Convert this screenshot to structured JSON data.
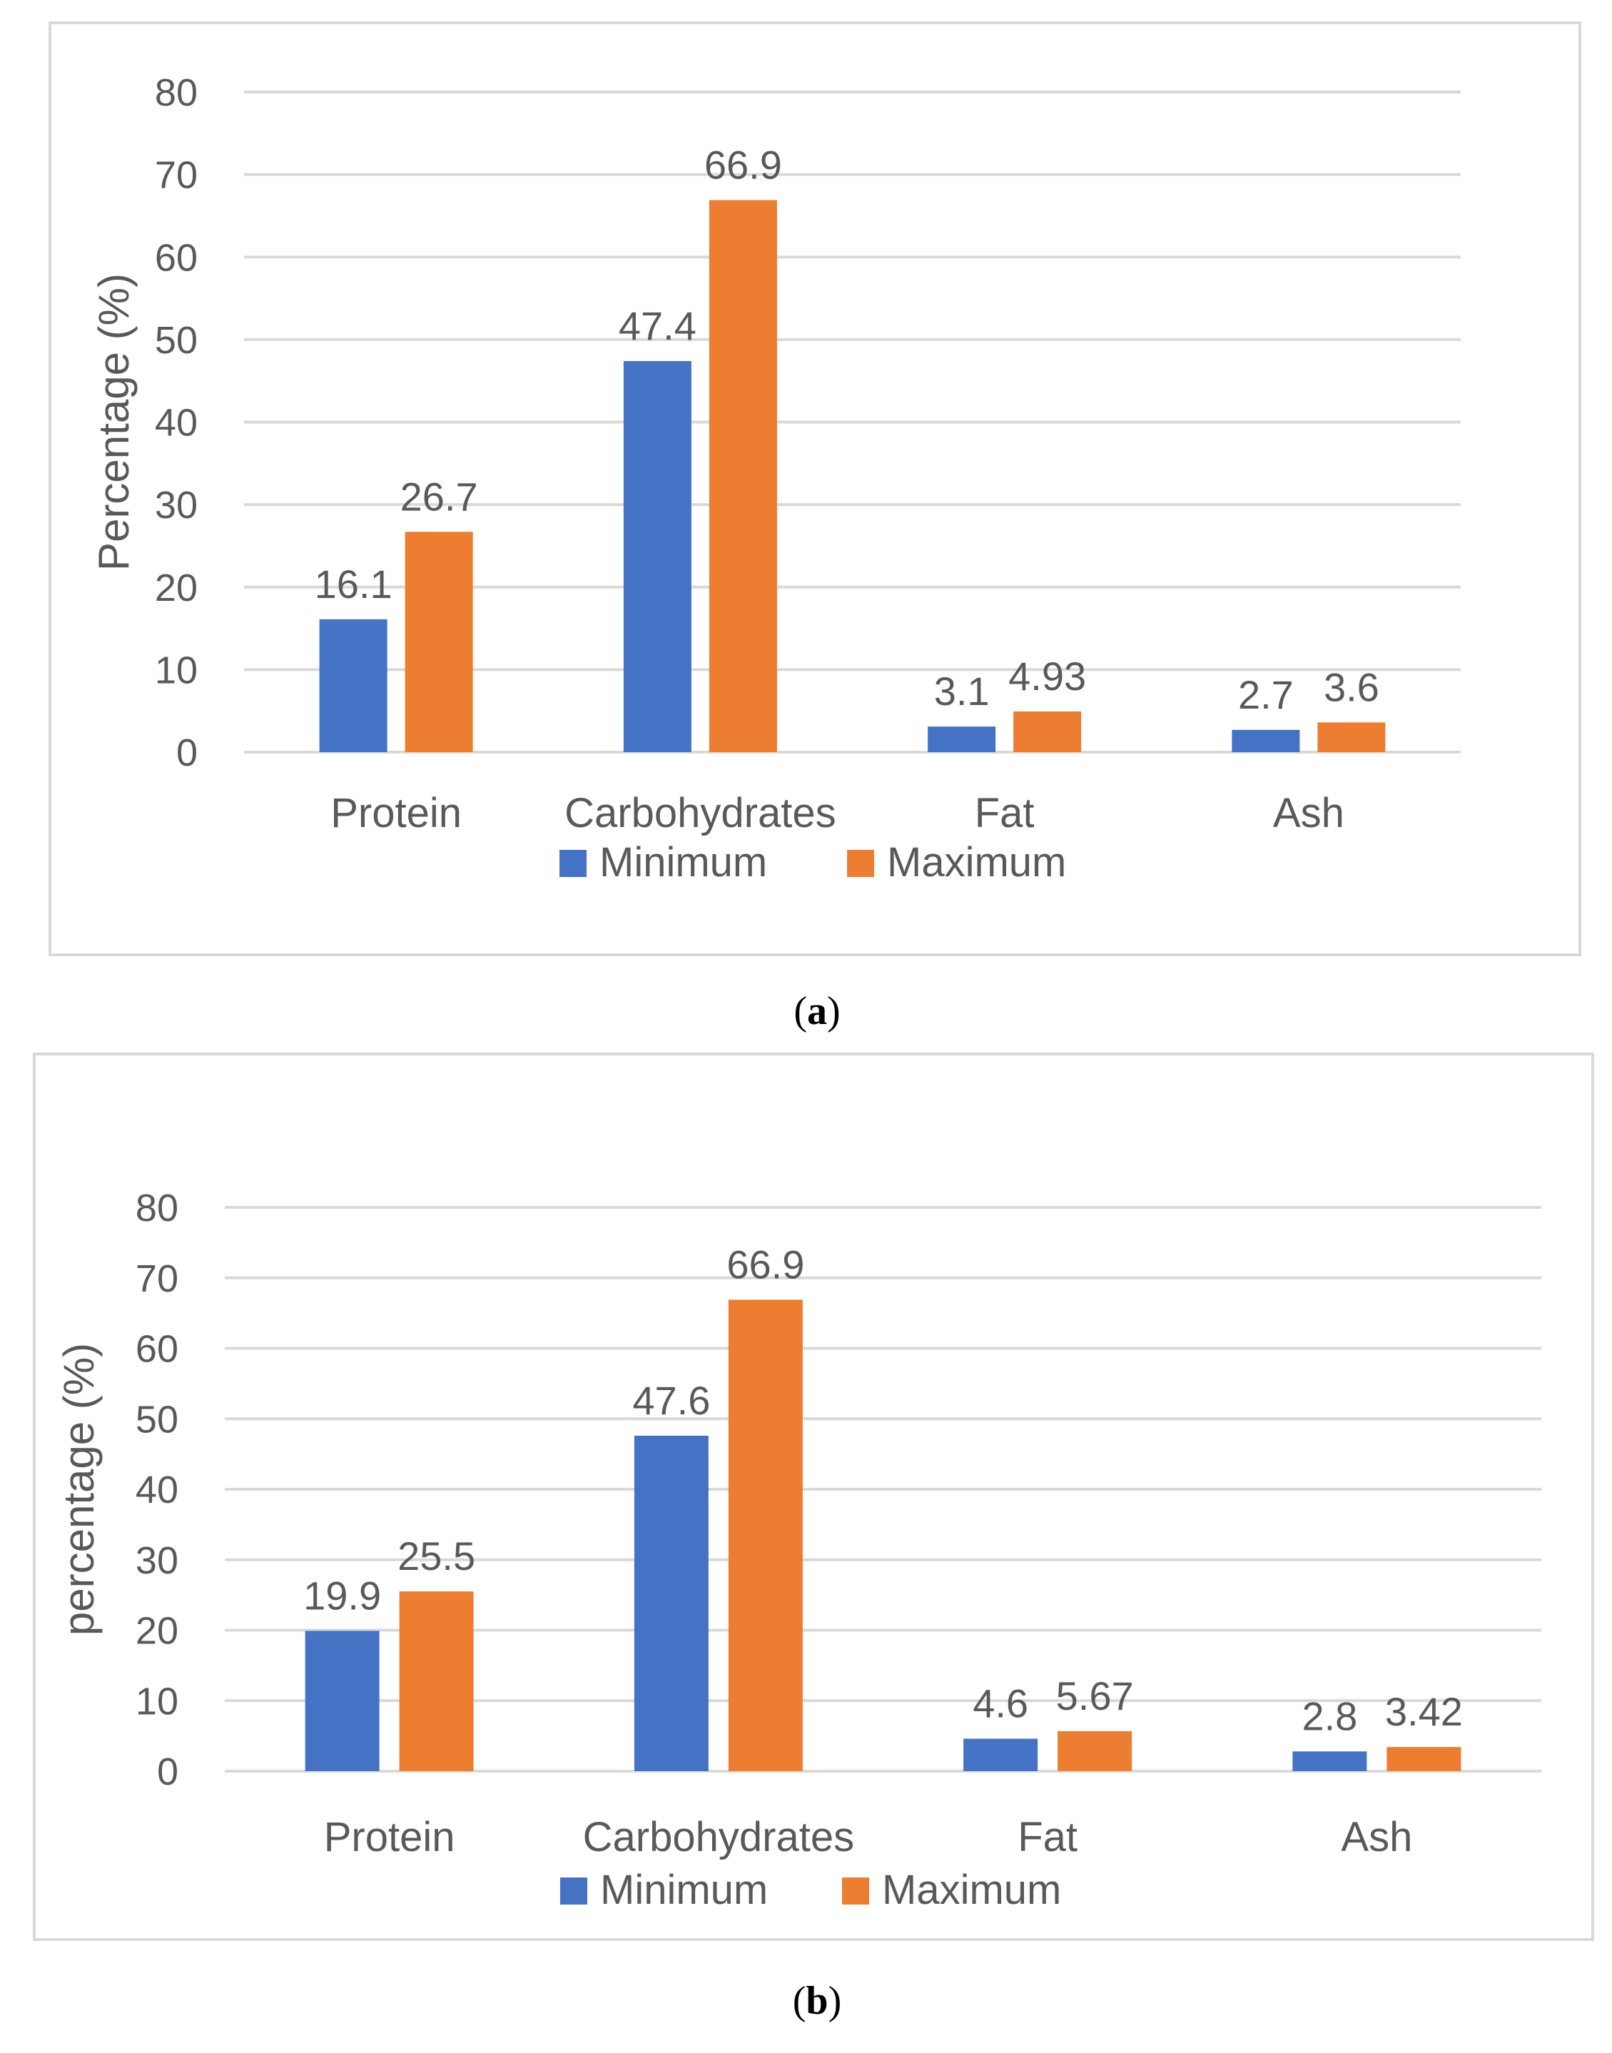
{
  "colors": {
    "minimum": "#4472C4",
    "maximum": "#ED7D31",
    "grid": "#d9d9d9",
    "text": "#595959"
  },
  "chart_data": [
    {
      "id": "a",
      "type": "bar",
      "caption_label": "a",
      "categories": [
        "Protein",
        "Carbohydrates",
        "Fat",
        "Ash"
      ],
      "series": [
        {
          "name": "Minimum",
          "values": [
            16.1,
            47.4,
            3.1,
            2.7
          ],
          "labels": [
            "16.1",
            "47.4",
            "3.1",
            "2.7"
          ]
        },
        {
          "name": "Maximum",
          "values": [
            26.7,
            66.9,
            4.93,
            3.6
          ],
          "labels": [
            "26.7",
            "66.9",
            "4.93",
            "3.6"
          ]
        }
      ],
      "ylabel": "Percentage (%)",
      "xlabel": "",
      "ylim": [
        0,
        80
      ],
      "yticks": [
        "0",
        "10",
        "20",
        "30",
        "40",
        "50",
        "60",
        "70",
        "80"
      ],
      "grid": true,
      "legend": "bottom"
    },
    {
      "id": "b",
      "type": "bar",
      "caption_label": "b",
      "categories": [
        "Protein",
        "Carbohydrates",
        "Fat",
        "Ash"
      ],
      "series": [
        {
          "name": "Minimum",
          "values": [
            19.9,
            47.6,
            4.6,
            2.8
          ],
          "labels": [
            "19.9",
            "47.6",
            "4.6",
            "2.8"
          ]
        },
        {
          "name": "Maximum",
          "values": [
            25.5,
            66.9,
            5.67,
            3.42
          ],
          "labels": [
            "25.5",
            "66.9",
            "5.67",
            "3.42"
          ]
        }
      ],
      "ylabel": "percentage (%)",
      "xlabel": "",
      "ylim": [
        0,
        80
      ],
      "yticks": [
        "0",
        "10",
        "20",
        "30",
        "40",
        "50",
        "60",
        "70",
        "80"
      ],
      "grid": true,
      "legend": "bottom"
    }
  ]
}
